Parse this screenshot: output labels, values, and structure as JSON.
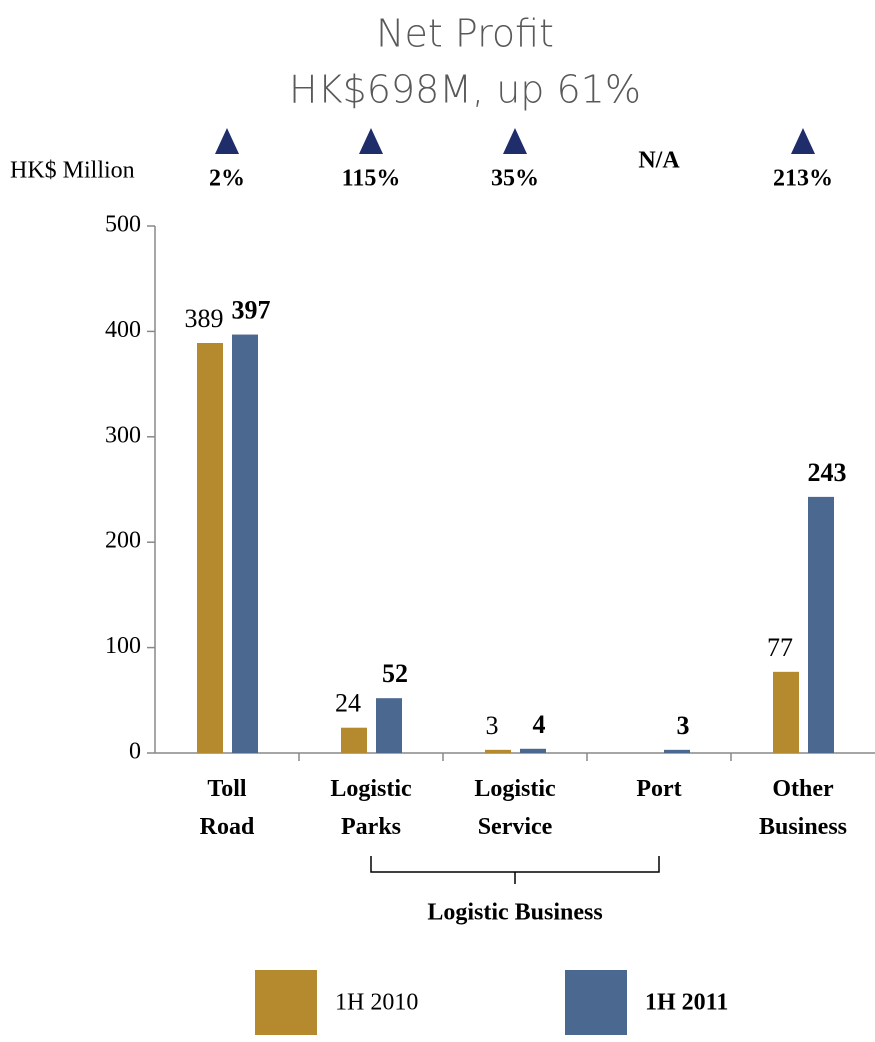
{
  "chart_data": {
    "type": "bar",
    "title": "Net Profit",
    "subtitle": "HK$698M, up 61%",
    "y_axis_label": "HK$ Million",
    "categories": [
      "Toll Road",
      "Logistic Parks",
      "Logistic Service",
      "Port",
      "Other Business"
    ],
    "series": [
      {
        "name": "1H 2010",
        "color": "#b5892e",
        "values": [
          389,
          24,
          3,
          null,
          77
        ]
      },
      {
        "name": "1H 2011",
        "color": "#4a6890",
        "values": [
          397,
          52,
          4,
          3,
          243
        ]
      }
    ],
    "growth_labels": [
      "2%",
      "115%",
      "35%",
      "N/A",
      "213%"
    ],
    "growth_arrows": [
      true,
      true,
      true,
      false,
      true
    ],
    "group": {
      "label": "Logistic Business",
      "categories": [
        "Logistic Parks",
        "Logistic Service",
        "Port"
      ]
    },
    "ylim": [
      0,
      500
    ],
    "yticks": [
      0,
      100,
      200,
      300,
      400,
      500
    ],
    "grid": false
  }
}
